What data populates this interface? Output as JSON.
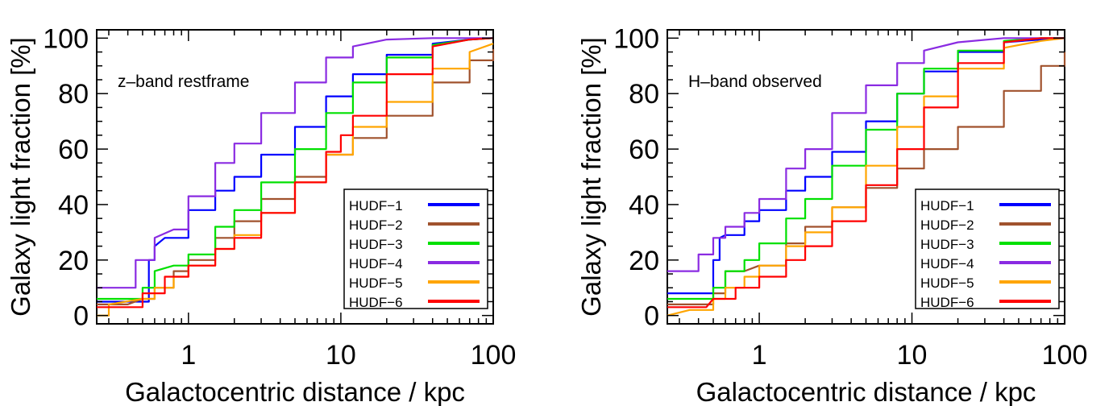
{
  "chart_data": [
    {
      "type": "line",
      "title": "",
      "annotation": "z–band restframe",
      "xlabel": "Galactocentric distance / kpc",
      "ylabel": "Galaxy light fraction [%]",
      "xscale": "log",
      "xlim": [
        0.25,
        100
      ],
      "ylim": [
        -3,
        103
      ],
      "xticks": [
        1,
        10,
        100
      ],
      "xtick_labels": [
        "1",
        "10",
        "100"
      ],
      "yticks": [
        0,
        20,
        40,
        60,
        80,
        100
      ],
      "ytick_labels": [
        "0",
        "20",
        "40",
        "60",
        "80",
        "100"
      ],
      "grid": false,
      "legend_position": "lower-right",
      "series": [
        {
          "name": "HUDF−1",
          "color": "#0000ff",
          "x": [
            0.25,
            0.5,
            0.55,
            0.6,
            0.7,
            1,
            1.5,
            2,
            3,
            5,
            8,
            12,
            20,
            40,
            70,
            100
          ],
          "y": [
            5,
            5,
            20,
            25,
            28,
            38,
            45,
            50,
            58,
            68,
            79,
            87,
            94,
            98,
            99.5,
            100
          ]
        },
        {
          "name": "HUDF−2",
          "color": "#a0522d",
          "x": [
            0.25,
            0.4,
            0.5,
            0.6,
            0.8,
            1,
            1.5,
            2,
            3,
            5,
            8,
            12,
            20,
            40,
            70,
            100
          ],
          "y": [
            4,
            4,
            6,
            10,
            16,
            20,
            28,
            34,
            42,
            50,
            58,
            64,
            72,
            84,
            92,
            96
          ]
        },
        {
          "name": "HUDF−3",
          "color": "#00e000",
          "x": [
            0.25,
            0.4,
            0.5,
            0.6,
            0.8,
            1,
            1.5,
            2,
            3,
            5,
            8,
            12,
            20,
            40,
            70,
            100
          ],
          "y": [
            6,
            6,
            10,
            16,
            18,
            22,
            32,
            38,
            48,
            60,
            73,
            84,
            93,
            97.5,
            99.5,
            100
          ]
        },
        {
          "name": "HUDF−4",
          "color": "#8a2be2",
          "x": [
            0.25,
            0.4,
            0.45,
            0.6,
            0.8,
            1,
            1.5,
            2,
            3,
            5,
            8,
            12,
            20,
            40,
            70,
            100
          ],
          "y": [
            10,
            10,
            20,
            28,
            31,
            43,
            55,
            62,
            73,
            84,
            93,
            97,
            99.5,
            100,
            100,
            100
          ]
        },
        {
          "name": "HUDF−5",
          "color": "#ffa500",
          "x": [
            0.25,
            0.3,
            0.5,
            0.6,
            0.8,
            1,
            1.5,
            2,
            3,
            5,
            8,
            12,
            20,
            40,
            70,
            100
          ],
          "y": [
            0,
            4,
            6,
            10,
            14,
            18,
            24,
            29,
            37,
            48,
            58,
            68,
            77,
            89,
            95,
            98
          ]
        },
        {
          "name": "HUDF−6",
          "color": "#ff0000",
          "x": [
            0.25,
            0.45,
            0.5,
            0.7,
            1,
            1.5,
            2,
            3,
            5,
            8,
            10,
            12,
            20,
            40,
            70,
            100
          ],
          "y": [
            3,
            3,
            8,
            14,
            18,
            24,
            28,
            37,
            48,
            59,
            65,
            72,
            87,
            97,
            99.5,
            100
          ]
        }
      ]
    },
    {
      "type": "line",
      "title": "",
      "annotation": "H–band observed",
      "xlabel": "Galactocentric distance / kpc",
      "ylabel": "Galaxy light fraction [%]",
      "xscale": "log",
      "xlim": [
        0.25,
        100
      ],
      "ylim": [
        -3,
        103
      ],
      "xticks": [
        1,
        10,
        100
      ],
      "xtick_labels": [
        "1",
        "10",
        "100"
      ],
      "yticks": [
        0,
        20,
        40,
        60,
        80,
        100
      ],
      "ytick_labels": [
        "0",
        "20",
        "40",
        "60",
        "80",
        "100"
      ],
      "grid": false,
      "legend_position": "lower-right",
      "series": [
        {
          "name": "HUDF−1",
          "color": "#0000ff",
          "x": [
            0.25,
            0.45,
            0.5,
            0.55,
            0.6,
            0.8,
            1,
            1.5,
            2,
            3,
            5,
            8,
            12,
            20,
            40,
            70,
            100
          ],
          "y": [
            8,
            8,
            20,
            28,
            29,
            34,
            38,
            45,
            50,
            59,
            70,
            80,
            88,
            95,
            98.5,
            99.5,
            100
          ]
        },
        {
          "name": "HUDF−2",
          "color": "#a0522d",
          "x": [
            0.25,
            0.45,
            0.5,
            0.6,
            0.8,
            1,
            1.5,
            2,
            3,
            5,
            8,
            12,
            20,
            40,
            70,
            100
          ],
          "y": [
            4,
            4,
            8,
            16,
            16,
            18,
            26,
            32,
            39,
            46,
            53,
            60,
            68,
            81,
            90,
            95
          ]
        },
        {
          "name": "HUDF−3",
          "color": "#00e000",
          "x": [
            0.25,
            0.45,
            0.5,
            0.6,
            0.8,
            1,
            1.5,
            2,
            3,
            5,
            8,
            12,
            20,
            40,
            70,
            100
          ],
          "y": [
            6,
            6,
            10,
            16,
            20,
            26,
            35,
            42,
            54,
            67,
            80,
            89,
            95.5,
            99,
            100,
            100
          ]
        },
        {
          "name": "HUDF−4",
          "color": "#8a2be2",
          "x": [
            0.25,
            0.35,
            0.4,
            0.5,
            0.6,
            0.8,
            1,
            1.5,
            2,
            3,
            5,
            8,
            12,
            20,
            40,
            70,
            100
          ],
          "y": [
            16,
            16,
            22,
            28,
            32,
            37,
            42,
            53,
            60,
            73,
            83,
            91,
            95.5,
            98.5,
            100,
            100,
            100
          ]
        },
        {
          "name": "HUDF−5",
          "color": "#ffa500",
          "x": [
            0.25,
            0.35,
            0.5,
            0.6,
            0.8,
            1,
            1.5,
            2,
            3,
            5,
            8,
            12,
            20,
            40,
            70,
            100
          ],
          "y": [
            0,
            2,
            6,
            10,
            14,
            18,
            25,
            30,
            39,
            54,
            68,
            79,
            89,
            96.5,
            99,
            100
          ]
        },
        {
          "name": "HUDF−6",
          "color": "#ff0000",
          "x": [
            0.25,
            0.45,
            0.5,
            0.7,
            1,
            1.5,
            2,
            3,
            5,
            8,
            12,
            20,
            40,
            70,
            100
          ],
          "y": [
            3,
            3,
            6,
            10,
            14,
            20,
            25,
            34,
            47,
            60,
            75,
            91,
            98.5,
            100,
            100
          ]
        }
      ]
    }
  ]
}
